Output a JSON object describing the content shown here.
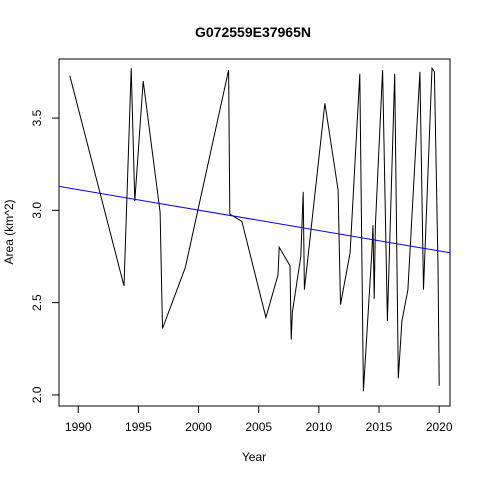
{
  "chart_data": {
    "type": "line",
    "title": "G072559E37965N",
    "xlabel": "Year",
    "ylabel": "Area (km^2)",
    "xlim": [
      1988.4,
      2020.9
    ],
    "ylim": [
      1.94,
      3.82
    ],
    "x_ticks": [
      1990,
      1995,
      2000,
      2005,
      2010,
      2015,
      2020
    ],
    "y_ticks": [
      2.0,
      2.5,
      3.0,
      3.5
    ],
    "x_tick_labels": [
      "1990",
      "1995",
      "2000",
      "2005",
      "2010",
      "2015",
      "2020"
    ],
    "y_tick_labels": [
      "2.0",
      "2.5",
      "3.0",
      "3.5"
    ],
    "grid": false,
    "series": [
      {
        "role": "data",
        "color": "#000000",
        "x": [
          1989.3,
          1993.8,
          1994.4,
          1994.7,
          1995.4,
          1996.8,
          1997.0,
          1998.9,
          2002.5,
          2002.6,
          2003.6,
          2005.6,
          2006.6,
          2006.7,
          2007.6,
          2007.7,
          2007.8,
          2008.5,
          2008.7,
          2008.8,
          2010.5,
          2011.6,
          2011.8,
          2012.6,
          2013.4,
          2013.7,
          2014.4,
          2014.5,
          2014.6,
          2014.7,
          2015.3,
          2015.7,
          2016.3,
          2016.6,
          2016.9,
          2017.4,
          2018.4,
          2018.7,
          2019.4,
          2019.6,
          2019.9,
          2020.0
        ],
        "y": [
          3.73,
          2.59,
          3.77,
          3.05,
          3.7,
          2.99,
          2.36,
          2.69,
          3.76,
          2.98,
          2.94,
          2.42,
          2.65,
          2.8,
          2.7,
          2.3,
          2.45,
          2.75,
          3.1,
          2.57,
          3.58,
          3.11,
          2.49,
          2.77,
          3.74,
          2.02,
          2.77,
          2.92,
          2.52,
          2.92,
          3.76,
          2.4,
          3.74,
          2.09,
          2.4,
          2.57,
          3.75,
          2.57,
          3.77,
          3.75,
          2.7,
          2.05
        ]
      },
      {
        "role": "trend",
        "color": "#0000ff",
        "x": [
          1988.4,
          2020.9
        ],
        "y": [
          3.13,
          2.77
        ]
      }
    ]
  }
}
